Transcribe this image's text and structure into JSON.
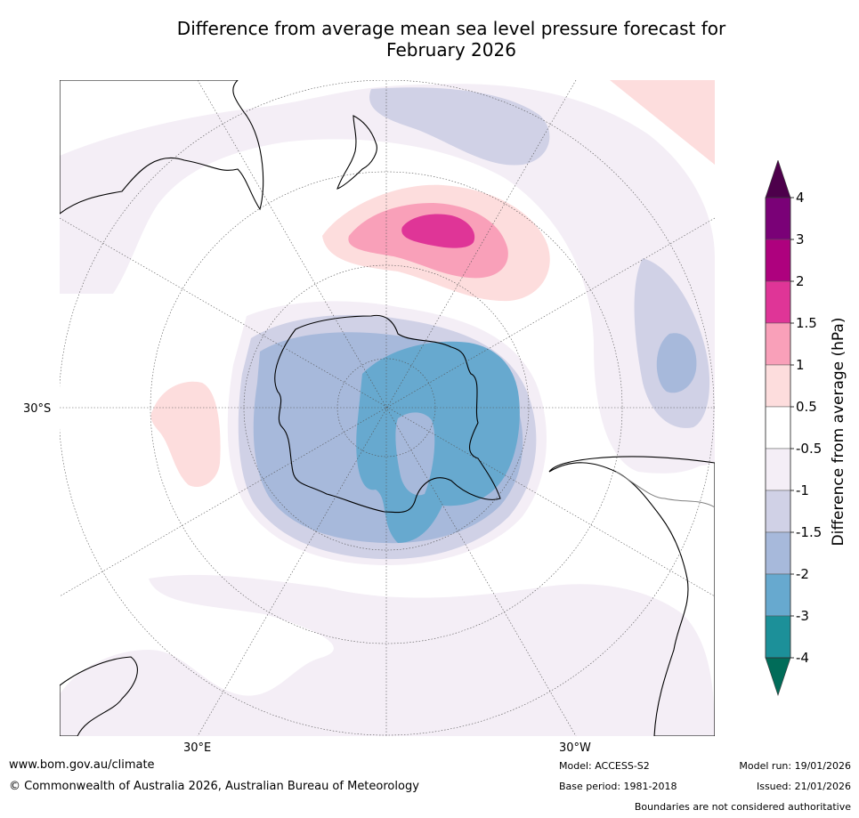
{
  "title": {
    "line1": "Difference from average mean sea level pressure forecast for",
    "line2": "February 2026"
  },
  "map": {
    "projection": "south-polar-stereographic",
    "labels": {
      "lat30s": "30°S",
      "lon30e": "30°E",
      "lon30w": "30°W"
    },
    "colors": {
      "ocean": "#ffffff",
      "land_outline": "#000000",
      "border": "#808080",
      "grid": "#555555",
      "p05_1": "#fddddd",
      "p1_15": "#f9a0b9",
      "p15_2": "#df3597",
      "n05_1": "#f4eef6",
      "n1_15": "#d0d1e6",
      "n15_2": "#a7b9db",
      "n2_3": "#67a9cf"
    }
  },
  "colorbar": {
    "label": "Difference from average (hPa)",
    "tick_labels": [
      "4",
      "3",
      "2",
      "1.5",
      "1",
      "0.5",
      "-0.5",
      "-1",
      "-1.5",
      "-2",
      "-3",
      "-4"
    ],
    "bands": [
      {
        "from": 3,
        "to": 4,
        "color": "#7a0177"
      },
      {
        "from": 2,
        "to": 3,
        "color": "#ae017e"
      },
      {
        "from": 1.5,
        "to": 2,
        "color": "#df3597"
      },
      {
        "from": 1,
        "to": 1.5,
        "color": "#f9a0b9"
      },
      {
        "from": 0.5,
        "to": 1,
        "color": "#fddddd"
      },
      {
        "from": -0.5,
        "to": 0.5,
        "color": "#ffffff"
      },
      {
        "from": -1,
        "to": -0.5,
        "color": "#f4eef6"
      },
      {
        "from": -1.5,
        "to": -1,
        "color": "#d0d1e6"
      },
      {
        "from": -2,
        "to": -1.5,
        "color": "#a7b9db"
      },
      {
        "from": -3,
        "to": -2,
        "color": "#67a9cf"
      },
      {
        "from": -4,
        "to": -3,
        "color": "#1c9099"
      }
    ],
    "top_extension_color": "#4d004b",
    "bottom_extension_color": "#016c59"
  },
  "footer": {
    "url": "www.bom.gov.au/climate",
    "copyright": "© Commonwealth of Australia 2026, Australian Bureau of Meteorology",
    "model": "Model: ACCESS-S2",
    "base_period": "Base period: 1981-2018",
    "model_run": "Model run: 19/01/2026",
    "issued": "Issued: 21/01/2026",
    "disclaimer": "Boundaries are not considered authoritative"
  }
}
